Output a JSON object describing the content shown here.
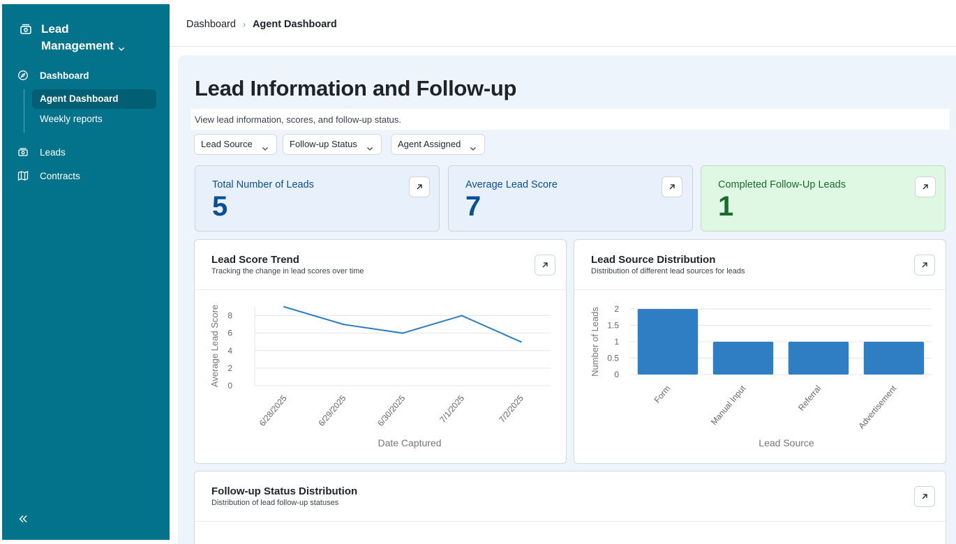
{
  "sidebar": {
    "brand_line1": "Lead",
    "brand_line2": "Management",
    "nav": {
      "dashboard": "Dashboard",
      "agent_dashboard": "Agent Dashboard",
      "weekly_reports": "Weekly reports",
      "leads": "Leads",
      "contracts": "Contracts"
    }
  },
  "breadcrumb": {
    "root": "Dashboard",
    "sep": "›",
    "current": "Agent Dashboard"
  },
  "page": {
    "title": "Lead Information and Follow-up",
    "subtitle": "View lead information, scores, and follow-up status."
  },
  "filters": {
    "lead_source": "Lead Source",
    "followup_status": "Follow-up Status",
    "agent_assigned": "Agent Assigned"
  },
  "kpis": {
    "total": {
      "label": "Total Number of Leads",
      "value": "5"
    },
    "avg": {
      "label": "Average Lead Score",
      "value": "7"
    },
    "completed": {
      "label": "Completed Follow-Up Leads",
      "value": "1"
    }
  },
  "cards": {
    "trend": {
      "title": "Lead Score Trend",
      "subtitle": "Tracking the change in lead scores over time"
    },
    "source": {
      "title": "Lead Source Distribution",
      "subtitle": "Distribution of different lead sources for leads"
    },
    "status": {
      "title": "Follow-up Status Distribution",
      "subtitle": "Distribution of lead follow-up statuses"
    }
  },
  "colors": {
    "sidebar": "#03738c",
    "series": "#2f7dc2"
  },
  "chart_data": [
    {
      "type": "line",
      "x": [
        "6/28/2025",
        "6/29/2025",
        "6/30/2025",
        "7/1/2025",
        "7/2/2025"
      ],
      "values": [
        9,
        7,
        6,
        8,
        5
      ],
      "xlabel": "Date Captured",
      "ylabel": "Average Lead Score",
      "yticks": [
        "0",
        "2",
        "4",
        "6",
        "8"
      ],
      "ylim": [
        0,
        9
      ],
      "grid": true
    },
    {
      "type": "bar",
      "categories": [
        "Form",
        "Manual Input",
        "Referral",
        "Advertisement"
      ],
      "values": [
        2,
        1,
        1,
        1
      ],
      "xlabel": "Lead Source",
      "ylabel": "Number of Leads",
      "yticks": [
        "0",
        "0.5",
        "1",
        "1.5",
        "2"
      ],
      "ylim": [
        0,
        2
      ],
      "grid": true
    }
  ]
}
